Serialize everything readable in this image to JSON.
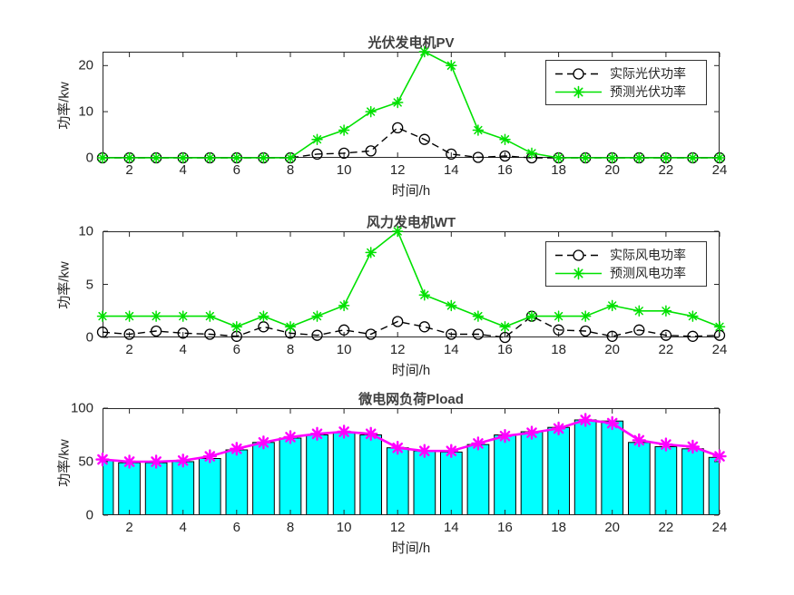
{
  "figure": {
    "background": "#ffffff",
    "axis_color": "#262626",
    "title_color": "#3f3f3f"
  },
  "chart_data": [
    {
      "type": "line",
      "title": "光伏发电机PV",
      "xlabel": "时间/h",
      "ylabel": "功率/kw",
      "x": [
        1,
        2,
        3,
        4,
        5,
        6,
        7,
        8,
        9,
        10,
        11,
        12,
        13,
        14,
        15,
        16,
        17,
        18,
        19,
        20,
        21,
        22,
        23,
        24
      ],
      "xlim": [
        1,
        24
      ],
      "ylim": [
        0,
        23
      ],
      "xticks": [
        2,
        4,
        6,
        8,
        10,
        12,
        14,
        16,
        18,
        20,
        22,
        24
      ],
      "yticks": [
        0,
        10,
        20
      ],
      "grid": false,
      "legend_position": "top-right",
      "series": [
        {
          "name": "实际光伏功率",
          "marker": "circle",
          "line": "dashed",
          "color": "#000000",
          "values": [
            0,
            0,
            0,
            0,
            0,
            0,
            0,
            0,
            0.8,
            1,
            1.5,
            6.5,
            4,
            0.8,
            0.1,
            0.4,
            0,
            0,
            0,
            0,
            0,
            0,
            0,
            0
          ]
        },
        {
          "name": "预测光伏功率",
          "marker": "asterisk",
          "line": "solid",
          "color": "#00e100",
          "values": [
            0,
            0,
            0,
            0,
            0,
            0,
            0,
            0,
            4,
            6,
            10,
            12,
            23,
            20,
            6,
            4,
            1,
            0,
            0,
            0,
            0,
            0,
            0,
            0
          ]
        }
      ]
    },
    {
      "type": "line",
      "title": "风力发电机WT",
      "xlabel": "时间/h",
      "ylabel": "功率/kw",
      "x": [
        1,
        2,
        3,
        4,
        5,
        6,
        7,
        8,
        9,
        10,
        11,
        12,
        13,
        14,
        15,
        16,
        17,
        18,
        19,
        20,
        21,
        22,
        23,
        24
      ],
      "xlim": [
        1,
        24
      ],
      "ylim": [
        0,
        10
      ],
      "xticks": [
        2,
        4,
        6,
        8,
        10,
        12,
        14,
        16,
        18,
        20,
        22,
        24
      ],
      "yticks": [
        0,
        5,
        10
      ],
      "grid": false,
      "legend_position": "top-right",
      "series": [
        {
          "name": "实际风电功率",
          "marker": "circle",
          "line": "dashed",
          "color": "#000000",
          "values": [
            0.5,
            0.3,
            0.6,
            0.4,
            0.3,
            0.1,
            1,
            0.4,
            0.2,
            0.7,
            0.3,
            1.5,
            1,
            0.3,
            0.3,
            0,
            2,
            0.7,
            0.6,
            0.1,
            0.7,
            0.2,
            0.1,
            0.2
          ]
        },
        {
          "name": "预测风电功率",
          "marker": "asterisk",
          "line": "solid",
          "color": "#00e100",
          "values": [
            2,
            2,
            2,
            2,
            2,
            1,
            2,
            1,
            2,
            3,
            8,
            10,
            4,
            3,
            2,
            1,
            2,
            2,
            2,
            3,
            2.5,
            2.5,
            2,
            1
          ]
        }
      ]
    },
    {
      "type": "bar",
      "title": "微电网负荷Pload",
      "xlabel": "时间/h",
      "ylabel": "功率/kw",
      "x": [
        1,
        2,
        3,
        4,
        5,
        6,
        7,
        8,
        9,
        10,
        11,
        12,
        13,
        14,
        15,
        16,
        17,
        18,
        19,
        20,
        21,
        22,
        23,
        24
      ],
      "xlim": [
        1,
        24
      ],
      "ylim": [
        0,
        100
      ],
      "xticks": [
        2,
        4,
        6,
        8,
        10,
        12,
        14,
        16,
        18,
        20,
        22,
        24
      ],
      "yticks": [
        0,
        50,
        100
      ],
      "grid": false,
      "bar": {
        "color": "#00ffff",
        "edge_color": "#000000",
        "width": 0.8,
        "values": [
          51,
          49,
          49,
          50,
          53,
          61,
          68,
          72,
          75,
          77,
          75,
          63,
          60,
          59,
          66,
          75,
          78,
          82,
          89,
          88,
          68,
          64,
          62,
          54
        ]
      },
      "line": {
        "color": "#ff00ff",
        "marker": "asterisk",
        "values": [
          52,
          50,
          50,
          51,
          55,
          62,
          68,
          73,
          76,
          78,
          76,
          63,
          60,
          60,
          67,
          74,
          77,
          81,
          89,
          86,
          70,
          66,
          64,
          55
        ]
      }
    }
  ]
}
